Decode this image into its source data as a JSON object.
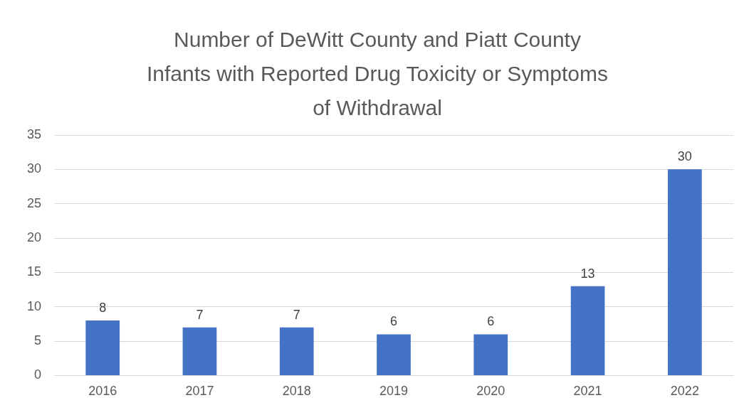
{
  "chart_data": {
    "type": "bar",
    "title": "Number of DeWitt County and Piatt County Infants with Reported Drug Toxicity or Symptoms of Withdrawal",
    "categories": [
      "2016",
      "2017",
      "2018",
      "2019",
      "2020",
      "2021",
      "2022"
    ],
    "values": [
      8,
      7,
      7,
      6,
      6,
      13,
      30
    ],
    "color": "#4472c4",
    "ylim": [
      0,
      35
    ],
    "yticks": [
      0,
      5,
      10,
      15,
      20,
      25,
      30,
      35
    ],
    "grid": "y",
    "data_labels": true,
    "legend": false
  }
}
